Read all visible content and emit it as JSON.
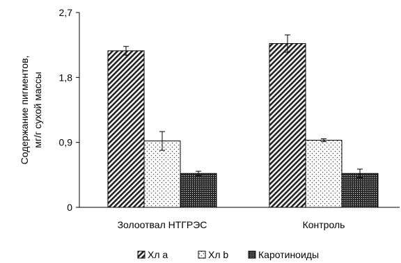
{
  "chart_data": {
    "type": "bar",
    "categories": [
      "Золоотвал НТГРЭС",
      "Контроль"
    ],
    "series": [
      {
        "name": "Хл a",
        "values": [
          2.17,
          2.27
        ],
        "errors": [
          0.06,
          0.12
        ],
        "pattern": "diagonal-hatch"
      },
      {
        "name": "Хл b",
        "values": [
          0.92,
          0.93
        ],
        "errors": [
          0.13,
          0.02
        ],
        "pattern": "dots"
      },
      {
        "name": "Каротиноиды",
        "values": [
          0.47,
          0.47
        ],
        "errors": [
          0.03,
          0.06
        ],
        "pattern": "dense-cross"
      }
    ],
    "ylabel_lines": [
      "Содержание пигментов,",
      "мг/г сухой массы"
    ],
    "ylim": [
      0,
      2.7
    ],
    "yticks": [
      0,
      0.9,
      1.8,
      2.7
    ],
    "ytick_labels": [
      "0",
      "0,9",
      "1,8",
      "2,7"
    ],
    "legend_position": "bottom",
    "grid": false
  }
}
